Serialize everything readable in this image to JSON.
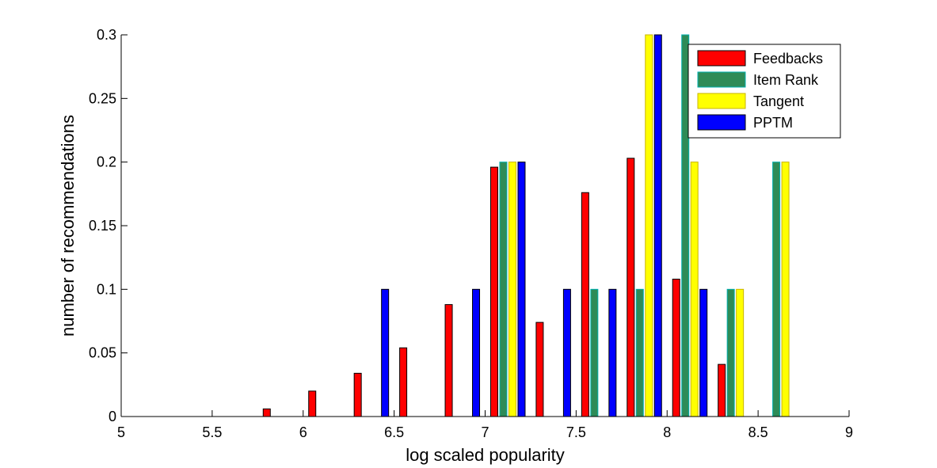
{
  "chart_data": {
    "type": "bar",
    "xlabel": "log scaled popularity",
    "ylabel": "number of recommendations",
    "xlim": [
      5,
      9
    ],
    "ylim": [
      0,
      0.3
    ],
    "xticks": [
      "5",
      "5.5",
      "6",
      "6.5",
      "7",
      "7.5",
      "8",
      "8.5",
      "9"
    ],
    "yticks": [
      "0",
      "0.05",
      "0.1",
      "0.15",
      "0.2",
      "0.25",
      "0.3"
    ],
    "grid": false,
    "legend_position": "top-right",
    "bin_centers": [
      5.125,
      5.375,
      5.625,
      5.875,
      6.125,
      6.375,
      6.625,
      6.875,
      7.125,
      7.375,
      7.625,
      7.875,
      8.125,
      8.375,
      8.625,
      8.875
    ],
    "series": [
      {
        "name": "Feedbacks",
        "color": "#ff0000",
        "edge": "#000000",
        "values": [
          0,
          0,
          0,
          0.006,
          0.02,
          0.034,
          0.054,
          0.088,
          0.196,
          0.074,
          0.176,
          0.203,
          0.108,
          0.041,
          0,
          0
        ]
      },
      {
        "name": "Item Rank",
        "color": "#2e8b57",
        "edge": "#00b0b0",
        "values": [
          0,
          0,
          0,
          0,
          0,
          0,
          0,
          0,
          0.2,
          0,
          0.1,
          0.1,
          0.3,
          0.1,
          0.2,
          0
        ]
      },
      {
        "name": "Tangent",
        "color": "#ffff00",
        "edge": "#c8b400",
        "values": [
          0,
          0,
          0,
          0,
          0,
          0,
          0,
          0,
          0.2,
          0,
          0,
          0.3,
          0.2,
          0.1,
          0.2,
          0
        ]
      },
      {
        "name": "PPTM",
        "color": "#0000ff",
        "edge": "#000000",
        "values": [
          0,
          0,
          0,
          0,
          0,
          0.1,
          0,
          0.1,
          0.2,
          0.1,
          0.1,
          0.3,
          0.1,
          0,
          0,
          0
        ]
      }
    ]
  }
}
